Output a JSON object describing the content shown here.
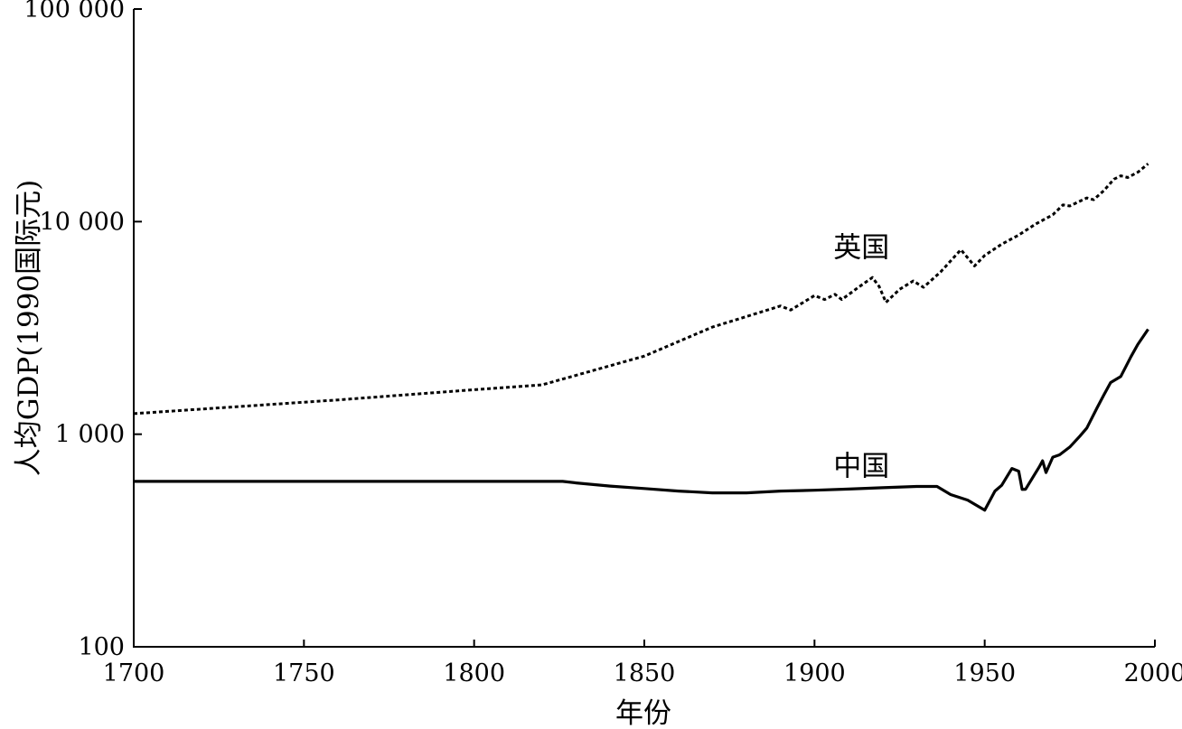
{
  "chart_data": {
    "type": "line",
    "xlabel": "年份",
    "ylabel": "人均GDP(1990国际元)",
    "y_scale": "log",
    "xlim": [
      1700,
      2000
    ],
    "ylim": [
      100,
      100000
    ],
    "x_ticks": [
      {
        "value": 1700,
        "label": "1700"
      },
      {
        "value": 1750,
        "label": "1750"
      },
      {
        "value": 1800,
        "label": "1800"
      },
      {
        "value": 1850,
        "label": "1850"
      },
      {
        "value": 1900,
        "label": "1900"
      },
      {
        "value": 1950,
        "label": "1950"
      },
      {
        "value": 2000,
        "label": "2000"
      }
    ],
    "y_ticks": [
      {
        "value": 100,
        "label": "100"
      },
      {
        "value": 1000,
        "label": "1 000"
      },
      {
        "value": 10000,
        "label": "10 000"
      },
      {
        "value": 100000,
        "label": "100 000"
      }
    ],
    "grid": false,
    "legend": "none",
    "series": [
      {
        "name": "英国",
        "style": "dotted",
        "color": "#000000",
        "points": [
          [
            1700,
            1250
          ],
          [
            1760,
            1450
          ],
          [
            1800,
            1620
          ],
          [
            1820,
            1707
          ],
          [
            1850,
            2330
          ],
          [
            1870,
            3190
          ],
          [
            1890,
            4010
          ],
          [
            1893,
            3840
          ],
          [
            1900,
            4490
          ],
          [
            1903,
            4300
          ],
          [
            1906,
            4550
          ],
          [
            1908,
            4300
          ],
          [
            1913,
            4920
          ],
          [
            1917,
            5460
          ],
          [
            1919,
            4950
          ],
          [
            1921,
            4170
          ],
          [
            1925,
            4800
          ],
          [
            1929,
            5260
          ],
          [
            1932,
            4910
          ],
          [
            1937,
            5790
          ],
          [
            1943,
            7380
          ],
          [
            1947,
            6190
          ],
          [
            1950,
            6940
          ],
          [
            1955,
            7830
          ],
          [
            1960,
            8650
          ],
          [
            1965,
            9750
          ],
          [
            1970,
            10770
          ],
          [
            1973,
            11990
          ],
          [
            1975,
            11850
          ],
          [
            1980,
            12930
          ],
          [
            1982,
            12670
          ],
          [
            1985,
            13990
          ],
          [
            1988,
            15840
          ],
          [
            1990,
            16430
          ],
          [
            1992,
            16130
          ],
          [
            1995,
            17090
          ],
          [
            1998,
            18710
          ]
        ]
      },
      {
        "name": "中国",
        "style": "solid",
        "color": "#000000",
        "points": [
          [
            1700,
            600
          ],
          [
            1826,
            600
          ],
          [
            1830,
            590
          ],
          [
            1840,
            570
          ],
          [
            1850,
            555
          ],
          [
            1860,
            540
          ],
          [
            1870,
            530
          ],
          [
            1880,
            530
          ],
          [
            1890,
            540
          ],
          [
            1900,
            545
          ],
          [
            1910,
            552
          ],
          [
            1920,
            560
          ],
          [
            1930,
            568
          ],
          [
            1936,
            568
          ],
          [
            1940,
            520
          ],
          [
            1945,
            490
          ],
          [
            1950,
            439
          ],
          [
            1953,
            540
          ],
          [
            1955,
            575
          ],
          [
            1958,
            690
          ],
          [
            1960,
            670
          ],
          [
            1961,
            550
          ],
          [
            1962,
            551
          ],
          [
            1966,
            700
          ],
          [
            1967,
            750
          ],
          [
            1968,
            660
          ],
          [
            1970,
            780
          ],
          [
            1972,
            800
          ],
          [
            1975,
            870
          ],
          [
            1978,
            980
          ],
          [
            1980,
            1070
          ],
          [
            1983,
            1330
          ],
          [
            1985,
            1530
          ],
          [
            1987,
            1750
          ],
          [
            1990,
            1870
          ],
          [
            1993,
            2320
          ],
          [
            1995,
            2650
          ],
          [
            1998,
            3117
          ]
        ]
      }
    ],
    "annotations": [
      {
        "text": "英国",
        "x": 1913,
        "y": 6800
      },
      {
        "text": "中国",
        "x": 1913,
        "y": 640
      }
    ]
  }
}
